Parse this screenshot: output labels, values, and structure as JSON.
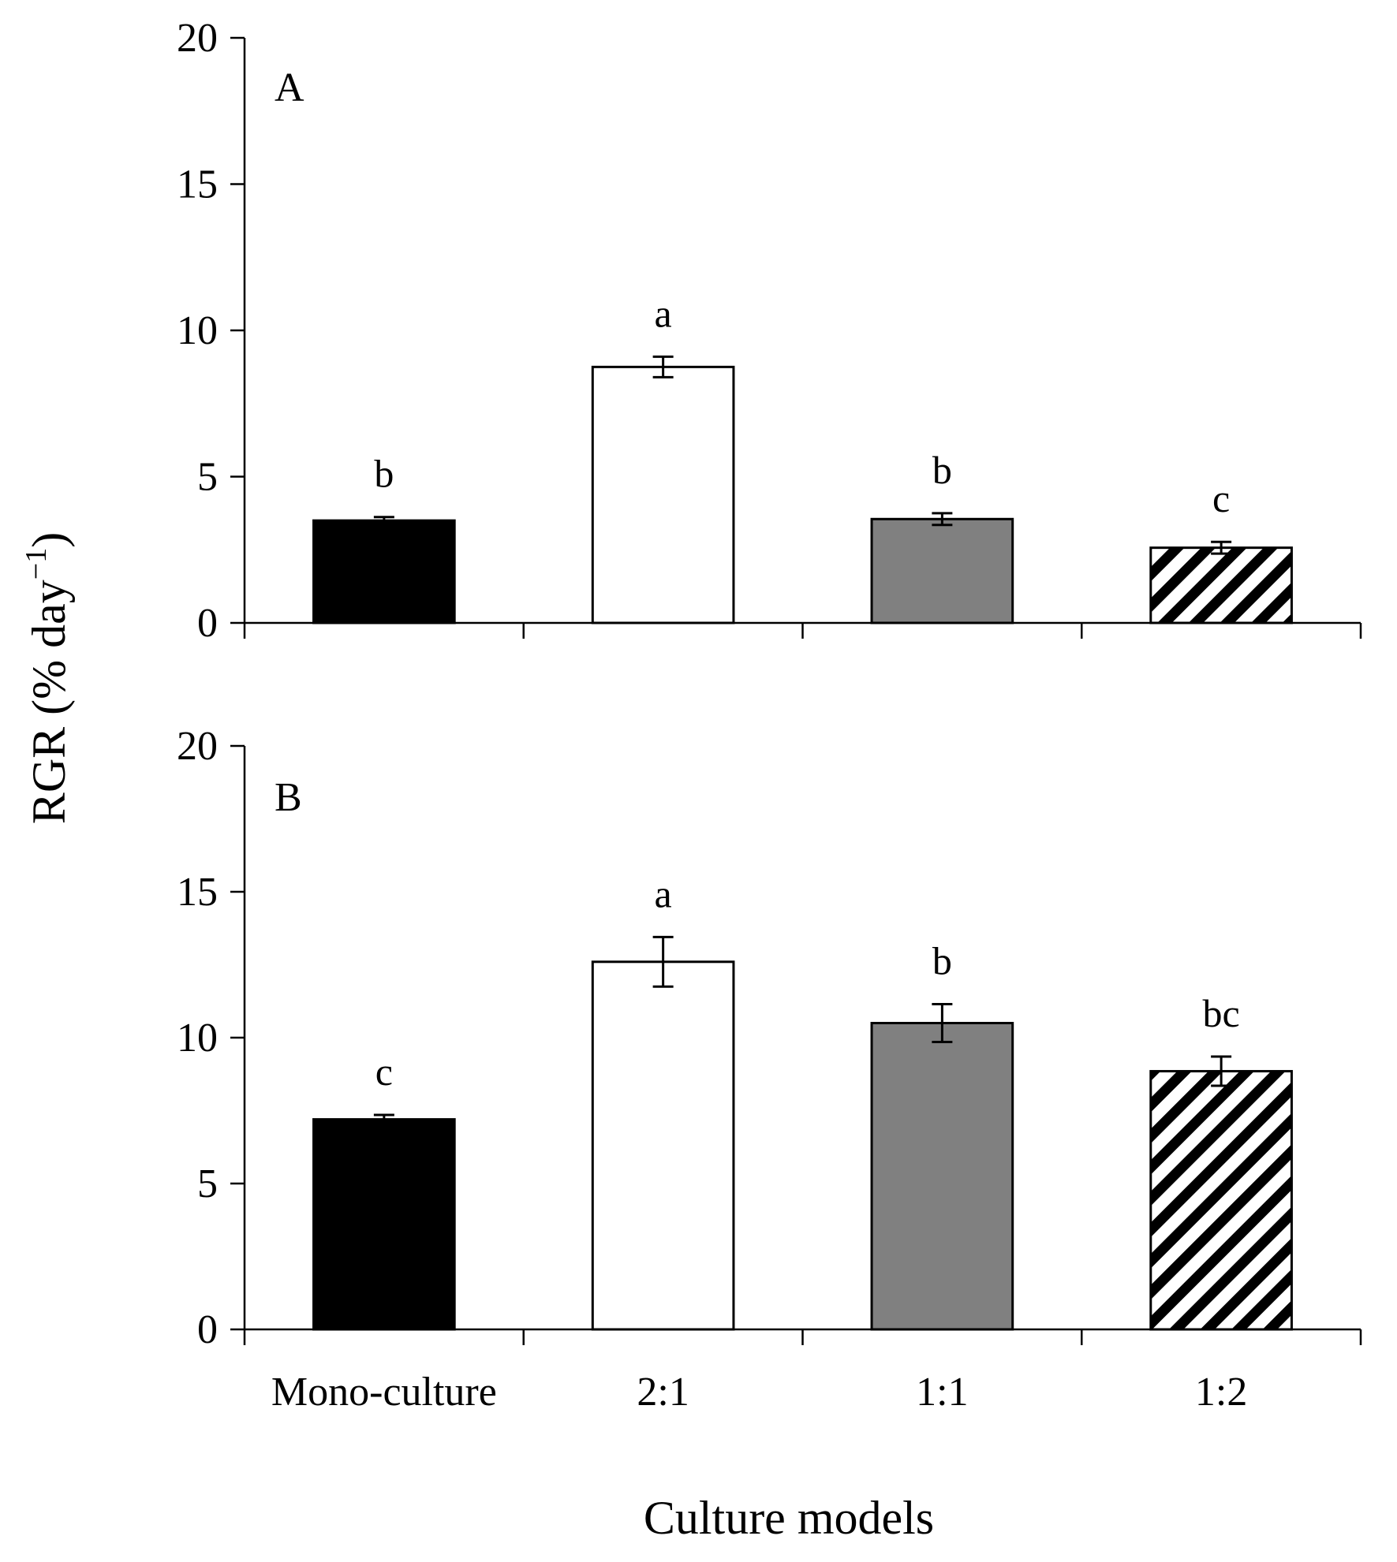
{
  "chart_data": [
    {
      "type": "bar",
      "panel_label": "A",
      "categories": [
        "Mono-culture",
        "2:1",
        "1:1",
        "1:2"
      ],
      "values": [
        3.5,
        8.75,
        3.55,
        2.57
      ],
      "errors": [
        0.12,
        0.35,
        0.2,
        0.2
      ],
      "significance": [
        "b",
        "a",
        "b",
        "c"
      ],
      "fills": [
        "black",
        "white",
        "gray",
        "hatched"
      ],
      "ylim": [
        0,
        20
      ],
      "yticks": [
        0,
        5,
        10,
        15,
        20
      ],
      "show_category_labels": false
    },
    {
      "type": "bar",
      "panel_label": "B",
      "categories": [
        "Mono-culture",
        "2:1",
        "1:1",
        "1:2"
      ],
      "values": [
        7.2,
        12.6,
        10.5,
        8.85
      ],
      "errors": [
        0.15,
        0.85,
        0.65,
        0.5
      ],
      "significance": [
        "c",
        "a",
        "b",
        "bc"
      ],
      "fills": [
        "black",
        "white",
        "gray",
        "hatched"
      ],
      "ylim": [
        0,
        20
      ],
      "yticks": [
        0,
        5,
        10,
        15,
        20
      ],
      "show_category_labels": true
    }
  ],
  "axes": {
    "ylabel_main": "RGR (% day",
    "ylabel_sup": "−1",
    "ylabel_close": ")",
    "xlabel": "Culture models"
  },
  "colors": {
    "black": "#000000",
    "white": "#ffffff",
    "gray": "#808080",
    "line": "#000000"
  }
}
